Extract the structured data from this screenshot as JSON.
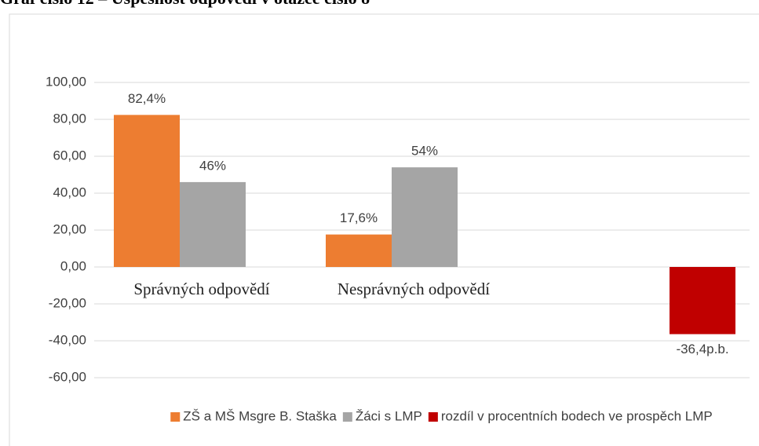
{
  "chart_data": {
    "type": "bar",
    "title": "Graf číslo 12 – Úspěšnost odpovědí v otázce číslo 8",
    "categories": [
      "Správných odpovědí",
      "Nesprávných odpovědí",
      null
    ],
    "series": [
      {
        "name": "ZŠ a MŠ Msgre B. Staška",
        "color": "#ed7d31",
        "values": [
          82.4,
          17.6,
          null
        ],
        "value_labels": [
          "82,4%",
          "17,6%",
          null
        ]
      },
      {
        "name": "Žáci s LMP",
        "color": "#a5a5a5",
        "values": [
          46,
          54,
          null
        ],
        "value_labels": [
          "46%",
          "54%",
          null
        ]
      },
      {
        "name": "rozdíl v procentních bodech ve prospěch LMP",
        "color": "#c00000",
        "values": [
          null,
          null,
          -36.4
        ],
        "value_labels": [
          null,
          null,
          "-36,4p.b."
        ]
      }
    ],
    "ylim": [
      -60,
      100
    ],
    "yticks": [
      {
        "value": -60,
        "label": "-60,00"
      },
      {
        "value": -40,
        "label": "-40,00"
      },
      {
        "value": -20,
        "label": "-20,00"
      },
      {
        "value": 0,
        "label": "0,00"
      },
      {
        "value": 20,
        "label": "20,00"
      },
      {
        "value": 40,
        "label": "40,00"
      },
      {
        "value": 60,
        "label": "60,00"
      },
      {
        "value": 80,
        "label": "80,00"
      },
      {
        "value": 100,
        "label": "100,00"
      }
    ],
    "grid": true,
    "legend": "bottom"
  }
}
